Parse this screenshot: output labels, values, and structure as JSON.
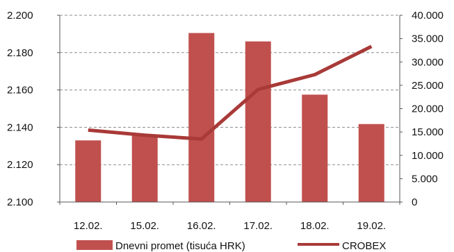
{
  "chart_data": {
    "type": "bar",
    "categories": [
      "12.02.",
      "15.02.",
      "16.02.",
      "17.02.",
      "18.02.",
      "19.02."
    ],
    "series": [
      {
        "name": "Dnevni promet (tisuća HRK)",
        "type": "bar",
        "axis": "right",
        "color": "#c0504d",
        "values": [
          13200,
          14400,
          36200,
          34400,
          23000,
          16700
        ]
      },
      {
        "name": "CROBEX",
        "type": "line",
        "axis": "left",
        "color": "#a83a38",
        "values": [
          2.1385,
          2.1358,
          2.1337,
          2.1603,
          2.1682,
          2.1833
        ]
      }
    ],
    "y_left": {
      "range": [
        2.1,
        2.2
      ],
      "ticks": [
        2.1,
        2.12,
        2.14,
        2.16,
        2.18,
        2.2
      ],
      "tick_labels": [
        "2.100",
        "2.120",
        "2.140",
        "2.160",
        "2.180",
        "2.200"
      ]
    },
    "y_right": {
      "range": [
        0,
        40000
      ],
      "ticks": [
        0,
        5000,
        10000,
        15000,
        20000,
        25000,
        30000,
        35000,
        40000
      ],
      "tick_labels": [
        "0",
        "5.000",
        "10.000",
        "15.000",
        "20.000",
        "25.000",
        "30.000",
        "35.000",
        "40.000"
      ]
    },
    "grid": "horizontal-dashed",
    "legend": "bottom",
    "legend_entries": [
      "Dnevni promet (tisuća HRK)",
      "CROBEX"
    ]
  }
}
